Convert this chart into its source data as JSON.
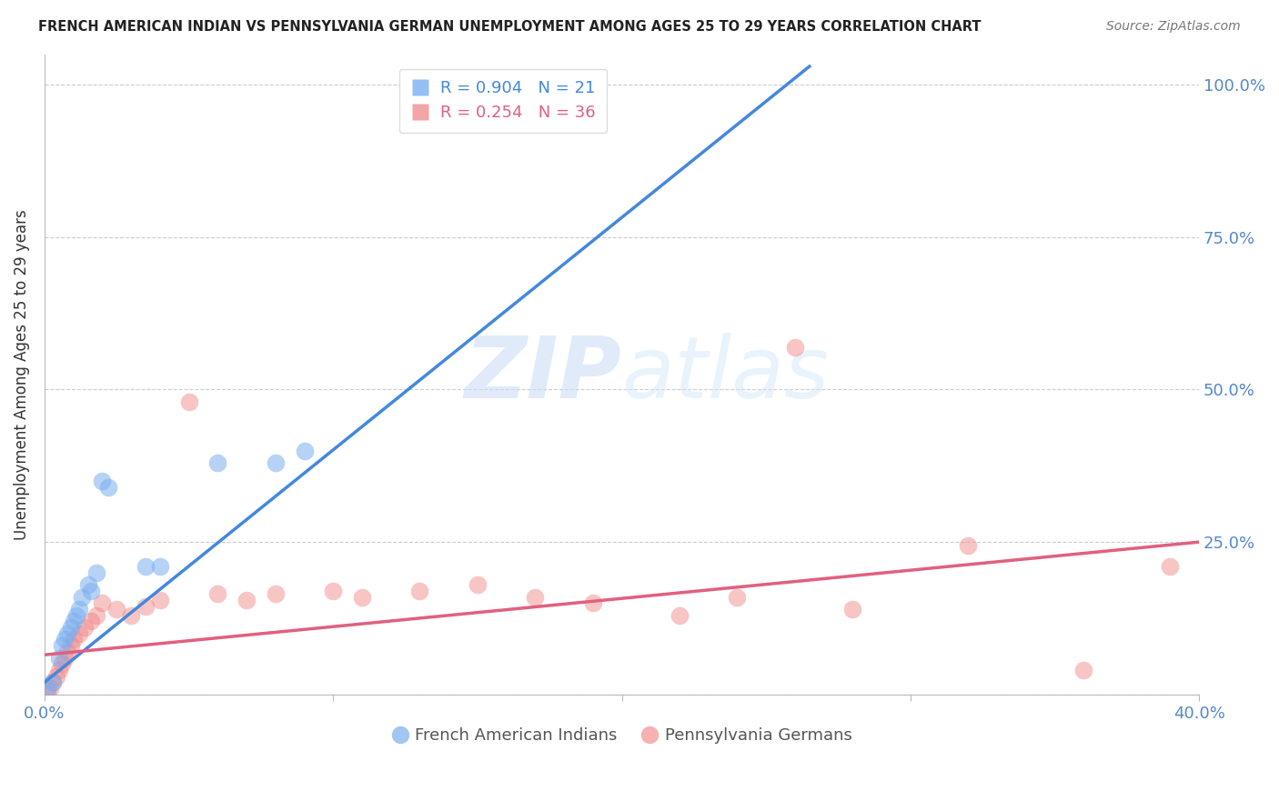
{
  "title": "FRENCH AMERICAN INDIAN VS PENNSYLVANIA GERMAN UNEMPLOYMENT AMONG AGES 25 TO 29 YEARS CORRELATION CHART",
  "source": "Source: ZipAtlas.com",
  "ylabel": "Unemployment Among Ages 25 to 29 years",
  "xlabel_blue": "French American Indians",
  "xlabel_pink": "Pennsylvania Germans",
  "xlim": [
    0.0,
    0.4
  ],
  "ylim": [
    0.0,
    1.05
  ],
  "xticks": [
    0.0,
    0.1,
    0.2,
    0.3,
    0.4
  ],
  "xticklabels": [
    "0.0%",
    "",
    "",
    "",
    "40.0%"
  ],
  "yticks_right": [
    0.25,
    0.5,
    0.75,
    1.0
  ],
  "yticklabels_right": [
    "25.0%",
    "50.0%",
    "75.0%",
    "100.0%"
  ],
  "grid_color": "#cccccc",
  "background_color": "#ffffff",
  "blue_R": 0.904,
  "blue_N": 21,
  "pink_R": 0.254,
  "pink_N": 36,
  "blue_color": "#7aaff0",
  "pink_color": "#f08080",
  "blue_line_color": "#4488dd",
  "pink_line_color": "#e06080",
  "tick_color": "#5588cc",
  "watermark_zip": "ZIP",
  "watermark_atlas": "atlas",
  "blue_scatter_x": [
    0.001,
    0.003,
    0.005,
    0.006,
    0.007,
    0.008,
    0.009,
    0.01,
    0.011,
    0.012,
    0.013,
    0.015,
    0.016,
    0.018,
    0.02,
    0.022,
    0.035,
    0.04,
    0.06,
    0.08,
    0.09
  ],
  "blue_scatter_y": [
    0.01,
    0.02,
    0.06,
    0.08,
    0.09,
    0.1,
    0.11,
    0.12,
    0.13,
    0.14,
    0.16,
    0.18,
    0.17,
    0.2,
    0.35,
    0.34,
    0.21,
    0.21,
    0.38,
    0.38,
    0.4
  ],
  "pink_scatter_x": [
    0.001,
    0.002,
    0.003,
    0.004,
    0.005,
    0.006,
    0.007,
    0.008,
    0.009,
    0.01,
    0.012,
    0.014,
    0.016,
    0.018,
    0.02,
    0.025,
    0.03,
    0.035,
    0.04,
    0.05,
    0.06,
    0.07,
    0.08,
    0.1,
    0.11,
    0.13,
    0.15,
    0.17,
    0.19,
    0.22,
    0.24,
    0.26,
    0.28,
    0.32,
    0.36,
    0.39
  ],
  "pink_scatter_y": [
    0.005,
    0.01,
    0.02,
    0.03,
    0.04,
    0.05,
    0.06,
    0.07,
    0.08,
    0.09,
    0.1,
    0.11,
    0.12,
    0.13,
    0.15,
    0.14,
    0.13,
    0.145,
    0.155,
    0.48,
    0.165,
    0.155,
    0.165,
    0.17,
    0.16,
    0.17,
    0.18,
    0.16,
    0.15,
    0.13,
    0.16,
    0.57,
    0.14,
    0.245,
    0.04,
    0.21
  ],
  "blue_line_x0": 0.0,
  "blue_line_x1": 0.265,
  "blue_line_y0": 0.02,
  "blue_line_y1": 1.03,
  "pink_line_x0": 0.0,
  "pink_line_x1": 0.4,
  "pink_line_y0": 0.065,
  "pink_line_y1": 0.25
}
